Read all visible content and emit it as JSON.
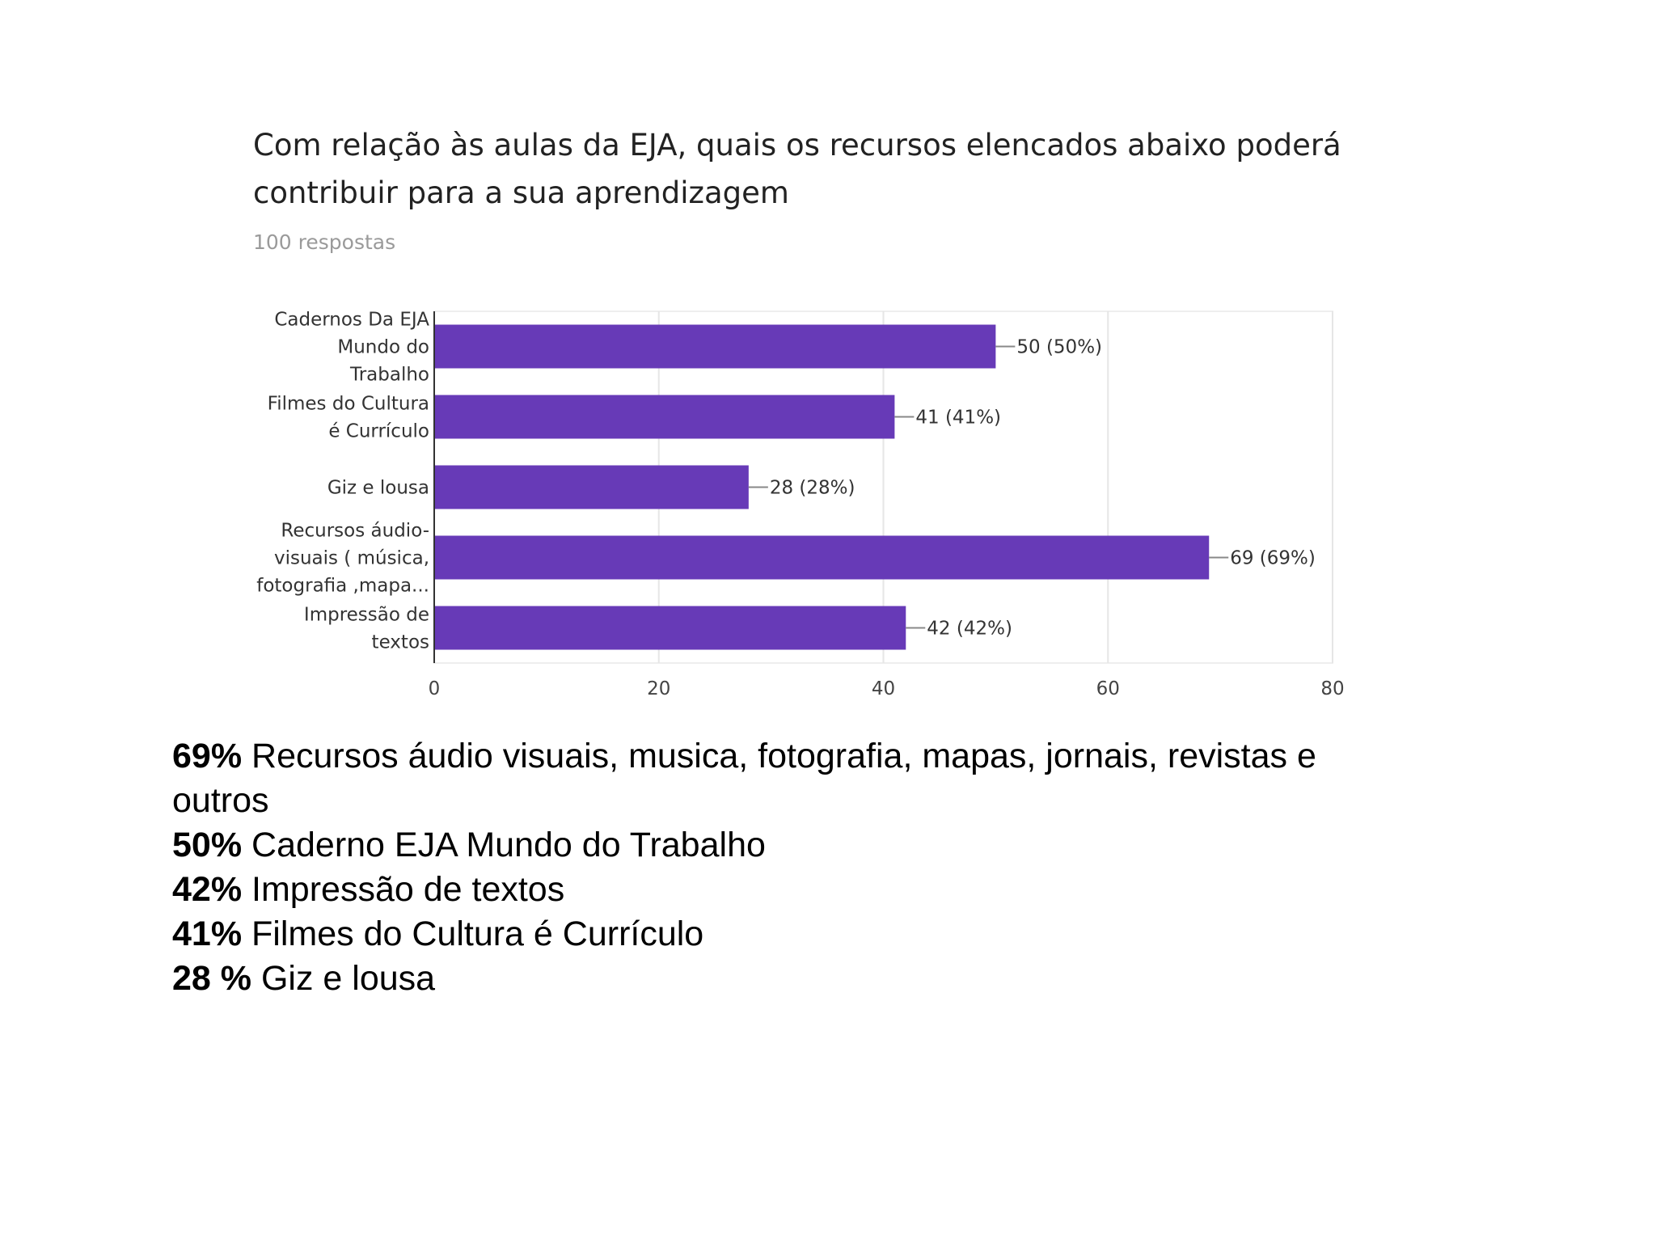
{
  "title": "Com relação às aulas da EJA, quais os recursos elencados abaixo poderá contribuir para a sua aprendizagem",
  "subtitle": "100 respostas",
  "chart_data": {
    "type": "bar",
    "orientation": "horizontal",
    "categories": [
      [
        "Cadernos Da EJA",
        "Mundo do",
        "Trabalho"
      ],
      [
        "Filmes do Cultura",
        "é Currículo"
      ],
      [
        "Giz e lousa"
      ],
      [
        "Recursos áudio-",
        "visuais ( música,",
        "fotografia ,mapa..."
      ],
      [
        "Impressão de",
        "textos"
      ]
    ],
    "values": [
      50,
      41,
      28,
      69,
      42
    ],
    "data_labels": [
      "50 (50%)",
      "41 (41%)",
      "28 (28%)",
      "69 (69%)",
      "42 (42%)"
    ],
    "xlim": [
      0,
      80
    ],
    "xticks": [
      0,
      20,
      40,
      60,
      80
    ],
    "bar_color": "#673ab7",
    "grid": true
  },
  "summary": [
    {
      "pct": "69%",
      "text": " Recursos áudio visuais, musica, fotografia, mapas, jornais, revistas e outros"
    },
    {
      "pct": "50%",
      "text": " Caderno EJA Mundo do Trabalho"
    },
    {
      "pct": "42%",
      "text": " Impressão de textos"
    },
    {
      "pct": "41%",
      "text": " Filmes do Cultura é Currículo"
    },
    {
      "pct": "28 %",
      "text": " Giz e lousa"
    }
  ]
}
